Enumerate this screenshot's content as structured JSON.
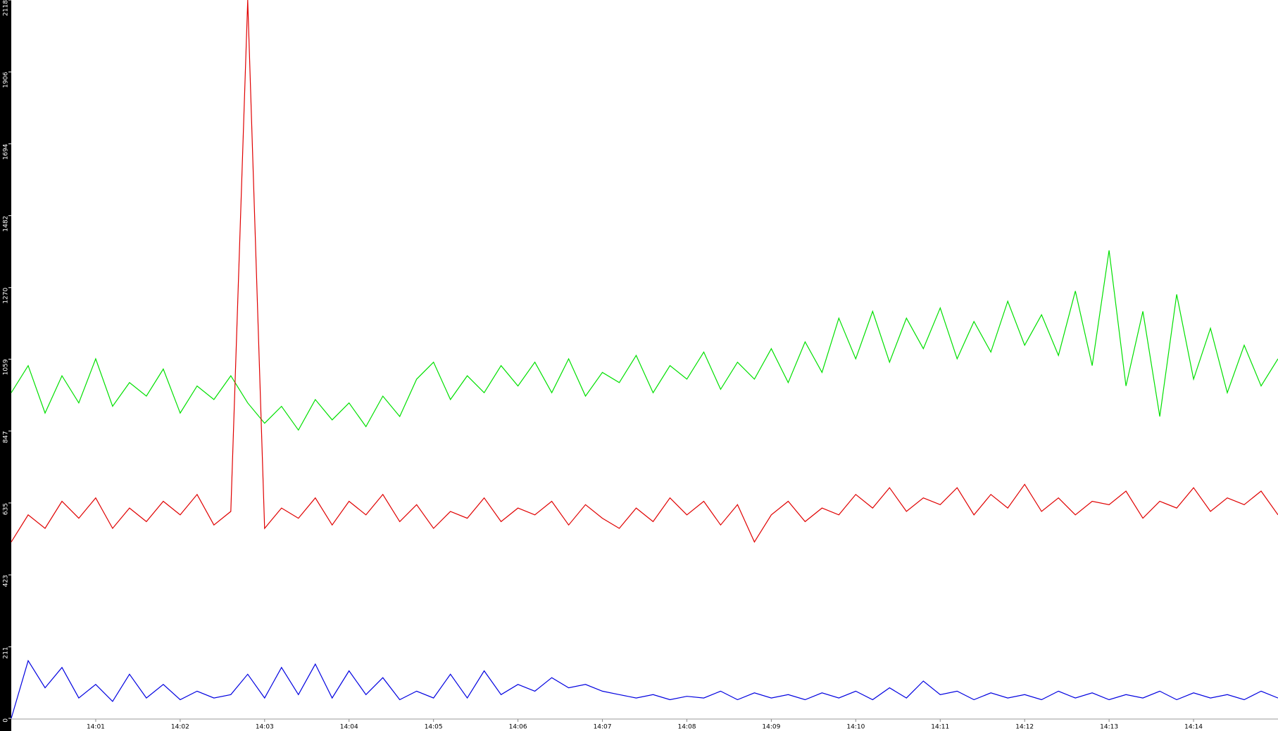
{
  "chart_data": {
    "type": "line",
    "x": [
      840,
      840.2,
      840.4,
      840.6,
      840.8,
      841,
      841.2,
      841.4,
      841.6,
      841.8,
      842,
      842.2,
      842.4,
      842.6,
      842.8,
      843,
      843.2,
      843.4,
      843.6,
      843.8,
      844,
      844.2,
      844.4,
      844.6,
      844.8,
      845,
      845.2,
      845.4,
      845.6,
      845.8,
      846,
      846.2,
      846.4,
      846.6,
      846.8,
      847,
      847.2,
      847.4,
      847.6,
      847.8,
      848,
      848.2,
      848.4,
      848.6,
      848.8,
      849,
      849.2,
      849.4,
      849.6,
      849.8,
      850,
      850.2,
      850.4,
      850.6,
      850.8,
      851,
      851.2,
      851.4,
      851.6,
      851.8,
      852,
      852.2,
      852.4,
      852.6,
      852.8,
      853,
      853.2,
      853.4,
      853.6,
      853.8,
      854,
      854.2,
      854.4,
      854.6,
      854.8,
      855
    ],
    "series": [
      {
        "color": "#00e000",
        "values": [
          960,
          1040,
          900,
          1010,
          930,
          1060,
          920,
          990,
          950,
          1030,
          900,
          980,
          940,
          1010,
          930,
          870,
          920,
          850,
          940,
          880,
          930,
          860,
          950,
          890,
          1000,
          1050,
          940,
          1010,
          960,
          1040,
          980,
          1050,
          960,
          1060,
          950,
          1020,
          990,
          1070,
          960,
          1040,
          1000,
          1080,
          970,
          1050,
          1000,
          1090,
          990,
          1110,
          1020,
          1180,
          1060,
          1200,
          1050,
          1180,
          1090,
          1210,
          1060,
          1170,
          1080,
          1230,
          1100,
          1190,
          1070,
          1260,
          1040,
          1380,
          980,
          1200,
          890,
          1250,
          1000,
          1150,
          960,
          1100,
          980,
          1060
        ]
      },
      {
        "color": "#e00000",
        "values": [
          520,
          600,
          560,
          640,
          590,
          650,
          560,
          620,
          580,
          640,
          600,
          660,
          570,
          610,
          2118,
          560,
          620,
          590,
          650,
          570,
          640,
          600,
          660,
          580,
          630,
          560,
          610,
          590,
          650,
          580,
          620,
          600,
          640,
          570,
          630,
          590,
          560,
          620,
          580,
          650,
          600,
          640,
          570,
          630,
          520,
          600,
          640,
          580,
          620,
          600,
          660,
          620,
          680,
          610,
          650,
          630,
          680,
          600,
          660,
          620,
          690,
          610,
          650,
          600,
          640,
          630,
          670,
          590,
          640,
          620,
          680,
          610,
          650,
          630,
          670,
          600
        ]
      },
      {
        "color": "#0000e0",
        "values": [
          0,
          170,
          90,
          150,
          60,
          100,
          50,
          130,
          60,
          100,
          55,
          80,
          60,
          70,
          130,
          60,
          150,
          70,
          160,
          60,
          140,
          70,
          120,
          55,
          80,
          60,
          130,
          60,
          140,
          70,
          100,
          80,
          120,
          90,
          100,
          80,
          70,
          60,
          70,
          55,
          65,
          60,
          80,
          55,
          75,
          60,
          70,
          55,
          75,
          60,
          80,
          55,
          90,
          60,
          110,
          70,
          80,
          55,
          75,
          60,
          70,
          55,
          80,
          60,
          75,
          55,
          70,
          60,
          80,
          55,
          75,
          60,
          70,
          55,
          80,
          60
        ]
      }
    ],
    "xlim": [
      840,
      855
    ],
    "xticks": [
      {
        "value": 841,
        "label": "14:01"
      },
      {
        "value": 842,
        "label": "14:02"
      },
      {
        "value": 843,
        "label": "14:03"
      },
      {
        "value": 844,
        "label": "14:04"
      },
      {
        "value": 845,
        "label": "14:05"
      },
      {
        "value": 846,
        "label": "14:06"
      },
      {
        "value": 847,
        "label": "14:07"
      },
      {
        "value": 848,
        "label": "14:08"
      },
      {
        "value": 849,
        "label": "14:09"
      },
      {
        "value": 850,
        "label": "14:10"
      },
      {
        "value": 851,
        "label": "14:11"
      },
      {
        "value": 852,
        "label": "14:12"
      },
      {
        "value": 853,
        "label": "14:13"
      },
      {
        "value": 854,
        "label": "14:14"
      }
    ],
    "ylim": [
      0,
      2118
    ],
    "yticks": [
      0,
      211,
      423,
      635,
      847,
      1059,
      1270,
      1482,
      1694,
      1906,
      2118
    ],
    "grid": false
  }
}
